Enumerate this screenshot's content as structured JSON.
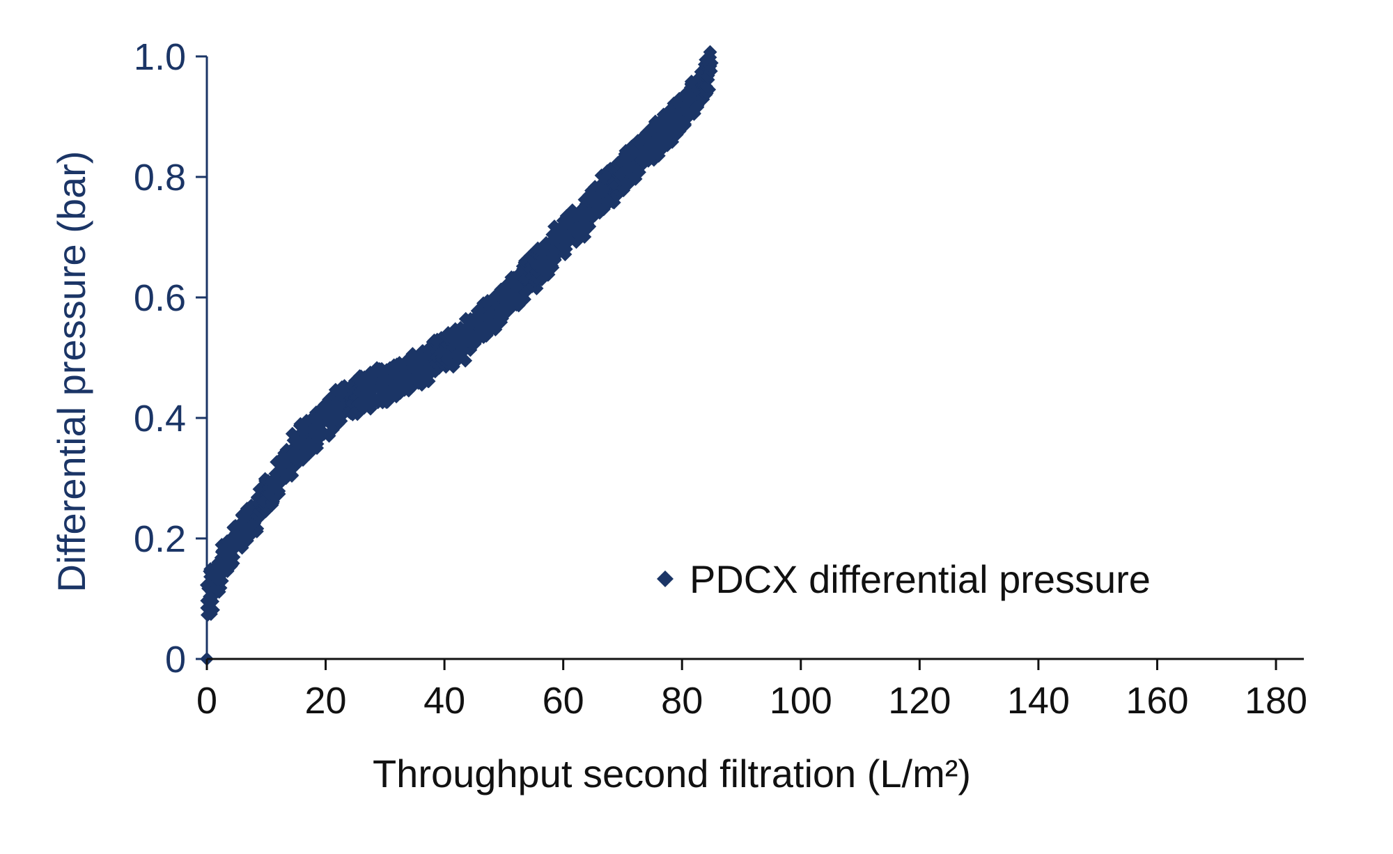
{
  "chart_data": {
    "type": "scatter",
    "title": "",
    "xlabel": "Throughput second filtration (L/m²)",
    "ylabel": "Differential pressure (bar)",
    "xlim": [
      0,
      185
    ],
    "ylim": [
      0,
      1.0
    ],
    "x_ticks": [
      0,
      20,
      40,
      60,
      80,
      100,
      120,
      140,
      160,
      180
    ],
    "x_tick_labels": [
      "0",
      "20",
      "40",
      "60",
      "80",
      "100",
      "120",
      "140",
      "160",
      "180"
    ],
    "y_ticks": [
      0,
      0.2,
      0.4,
      0.6,
      0.8,
      1.0
    ],
    "y_tick_labels": [
      "0",
      "0.2",
      "0.4",
      "0.6",
      "0.8",
      "1.0"
    ],
    "grid": false,
    "legend_position": "lower-right",
    "colors": {
      "series": "#1b3566",
      "yaxis_text": "#1b3566",
      "xaxis_text": "#111111"
    },
    "marker": "diamond",
    "series": [
      {
        "name": "PDCX differential pressure",
        "points": [
          [
            0,
            0
          ],
          [
            0.5,
            0.1
          ],
          [
            1,
            0.12
          ],
          [
            2,
            0.14
          ],
          [
            3,
            0.16
          ],
          [
            4,
            0.18
          ],
          [
            5,
            0.195
          ],
          [
            6,
            0.21
          ],
          [
            7,
            0.225
          ],
          [
            8,
            0.24
          ],
          [
            9,
            0.255
          ],
          [
            10,
            0.27
          ],
          [
            11,
            0.285
          ],
          [
            12,
            0.3
          ],
          [
            13,
            0.315
          ],
          [
            14,
            0.33
          ],
          [
            15,
            0.345
          ],
          [
            16,
            0.36
          ],
          [
            17,
            0.37
          ],
          [
            18,
            0.38
          ],
          [
            19,
            0.39
          ],
          [
            20,
            0.4
          ],
          [
            21,
            0.41
          ],
          [
            22,
            0.42
          ],
          [
            23,
            0.425
          ],
          [
            24,
            0.43
          ],
          [
            25,
            0.435
          ],
          [
            26,
            0.44
          ],
          [
            27,
            0.445
          ],
          [
            28,
            0.45
          ],
          [
            29,
            0.455
          ],
          [
            30,
            0.455
          ],
          [
            31,
            0.46
          ],
          [
            32,
            0.465
          ],
          [
            33,
            0.47
          ],
          [
            34,
            0.475
          ],
          [
            35,
            0.48
          ],
          [
            36,
            0.485
          ],
          [
            37,
            0.49
          ],
          [
            38,
            0.5
          ],
          [
            39,
            0.505
          ],
          [
            40,
            0.51
          ],
          [
            41,
            0.515
          ],
          [
            42,
            0.52
          ],
          [
            43,
            0.525
          ],
          [
            44,
            0.535
          ],
          [
            45,
            0.545
          ],
          [
            46,
            0.555
          ],
          [
            47,
            0.565
          ],
          [
            48,
            0.575
          ],
          [
            49,
            0.585
          ],
          [
            50,
            0.595
          ],
          [
            51,
            0.605
          ],
          [
            52,
            0.615
          ],
          [
            53,
            0.625
          ],
          [
            54,
            0.635
          ],
          [
            55,
            0.645
          ],
          [
            56,
            0.655
          ],
          [
            57,
            0.665
          ],
          [
            58,
            0.675
          ],
          [
            59,
            0.69
          ],
          [
            60,
            0.7
          ],
          [
            61,
            0.71
          ],
          [
            62,
            0.72
          ],
          [
            63,
            0.73
          ],
          [
            64,
            0.745
          ],
          [
            65,
            0.755
          ],
          [
            66,
            0.765
          ],
          [
            67,
            0.775
          ],
          [
            68,
            0.785
          ],
          [
            69,
            0.795
          ],
          [
            70,
            0.805
          ],
          [
            71,
            0.815
          ],
          [
            72,
            0.825
          ],
          [
            73,
            0.835
          ],
          [
            74,
            0.845
          ],
          [
            75,
            0.855
          ],
          [
            76,
            0.865
          ],
          [
            77,
            0.875
          ],
          [
            78,
            0.885
          ],
          [
            79,
            0.895
          ],
          [
            80,
            0.905
          ],
          [
            81,
            0.915
          ],
          [
            82,
            0.93
          ],
          [
            83,
            0.945
          ],
          [
            84,
            0.96
          ],
          [
            84.5,
            0.98
          ]
        ],
        "band": 0.03
      }
    ]
  }
}
